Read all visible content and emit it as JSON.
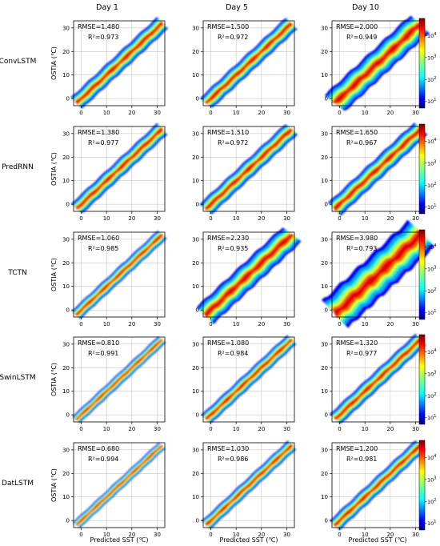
{
  "chart_data": {
    "type": "heatmap",
    "subtype": "density-scatter",
    "columns": [
      "Day 1",
      "Day 5",
      "Day 10"
    ],
    "rows": [
      "ConvLSTM",
      "PredRNN",
      "TCTN",
      "SwinLSTM",
      "DatLSTM"
    ],
    "xlabel": "Predicted SST (℃)",
    "ylabel": "OSTIA (℃)",
    "xlim": [
      -3,
      33
    ],
    "ylim": [
      -3,
      33
    ],
    "xticks": [
      0,
      10,
      20,
      30
    ],
    "yticks": [
      0,
      10,
      20,
      30
    ],
    "grid": true,
    "colorbar": {
      "scale": "log",
      "ticks": [
        {
          "value": 10,
          "base": "10",
          "exp": "1"
        },
        {
          "value": 100,
          "base": "10",
          "exp": "2"
        },
        {
          "value": 1000,
          "base": "10",
          "exp": "3"
        },
        {
          "value": 10000,
          "base": "10",
          "exp": "4"
        }
      ],
      "range": [
        5,
        60000
      ],
      "colormap": "jet"
    },
    "panels": [
      [
        {
          "rmse": "RMSE=1.480",
          "r2": "R²=0.973",
          "spread": 1.6
        },
        {
          "rmse": "RMSE=1.500",
          "r2": "R²=0.972",
          "spread": 1.6
        },
        {
          "rmse": "RMSE=2.000",
          "r2": "R²=0.949",
          "spread": 2.6
        }
      ],
      [
        {
          "rmse": "RMSE=1.380",
          "r2": "R²=0.977",
          "spread": 1.5
        },
        {
          "rmse": "RMSE=1.510",
          "r2": "R²=0.972",
          "spread": 1.6
        },
        {
          "rmse": "RMSE=1.650",
          "r2": "R²=0.967",
          "spread": 1.8
        }
      ],
      [
        {
          "rmse": "RMSE=1.060",
          "r2": "R²=0.985",
          "spread": 1.2
        },
        {
          "rmse": "RMSE=2.230",
          "r2": "R²=0.935",
          "spread": 2.4
        },
        {
          "rmse": "RMSE=3.980",
          "r2": "R²=0.793",
          "spread": 3.8
        }
      ],
      [
        {
          "rmse": "RMSE=0.810",
          "r2": "R²=0.991",
          "spread": 1.0
        },
        {
          "rmse": "RMSE=1.080",
          "r2": "R²=0.984",
          "spread": 1.3
        },
        {
          "rmse": "RMSE=1.320",
          "r2": "R²=0.977",
          "spread": 1.5
        }
      ],
      [
        {
          "rmse": "RMSE=0.680",
          "r2": "R²=0.994",
          "spread": 0.9
        },
        {
          "rmse": "RMSE=1.030",
          "r2": "R²=0.986",
          "spread": 1.2
        },
        {
          "rmse": "RMSE=1.200",
          "r2": "R²=0.981",
          "spread": 1.4
        }
      ]
    ],
    "data_range": [
      -2,
      32
    ]
  },
  "colors": {
    "jet": [
      "#00007f",
      "#0000ff",
      "#007fff",
      "#00ffff",
      "#7fff7f",
      "#ffff00",
      "#ff7f00",
      "#ff0000",
      "#7f0000"
    ],
    "grid": "#c8c8c8",
    "axis": "#000000"
  }
}
